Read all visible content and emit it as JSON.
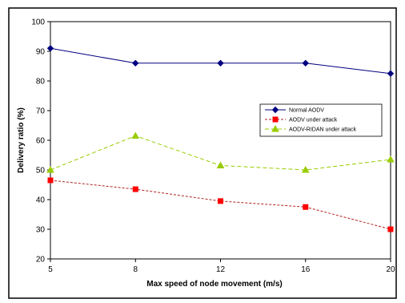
{
  "chart_data": {
    "type": "line",
    "title": "",
    "xlabel": "Max speed of node movement (m/s)",
    "ylabel": "Delivery ratio (%)",
    "x": [
      5,
      8,
      12,
      16,
      20
    ],
    "x_ticks": [
      "5",
      "8",
      "12",
      "16",
      "20"
    ],
    "y_ticks": [
      "20",
      "30",
      "40",
      "50",
      "60",
      "70",
      "80",
      "90",
      "100"
    ],
    "xlim": [
      5,
      20
    ],
    "ylim": [
      20,
      100
    ],
    "grid": false,
    "legend_position": "right",
    "series": [
      {
        "name": "Normal AODV",
        "values": [
          91,
          86,
          86,
          86,
          82.5
        ],
        "color": "#000080",
        "marker": "diamond",
        "dash": ""
      },
      {
        "name": "AODV under attack",
        "values": [
          46.5,
          43.5,
          39.5,
          37.5,
          30
        ],
        "color": "#ff0000",
        "line_color": "#b22222",
        "marker": "square",
        "dash": "3,2"
      },
      {
        "name": "AODV-RIDAN under attack",
        "values": [
          50,
          61.5,
          51.5,
          50,
          53.5
        ],
        "color": "#99cc00",
        "line_color": "#99cc00",
        "marker": "triangle",
        "dash": "5,3"
      }
    ]
  }
}
